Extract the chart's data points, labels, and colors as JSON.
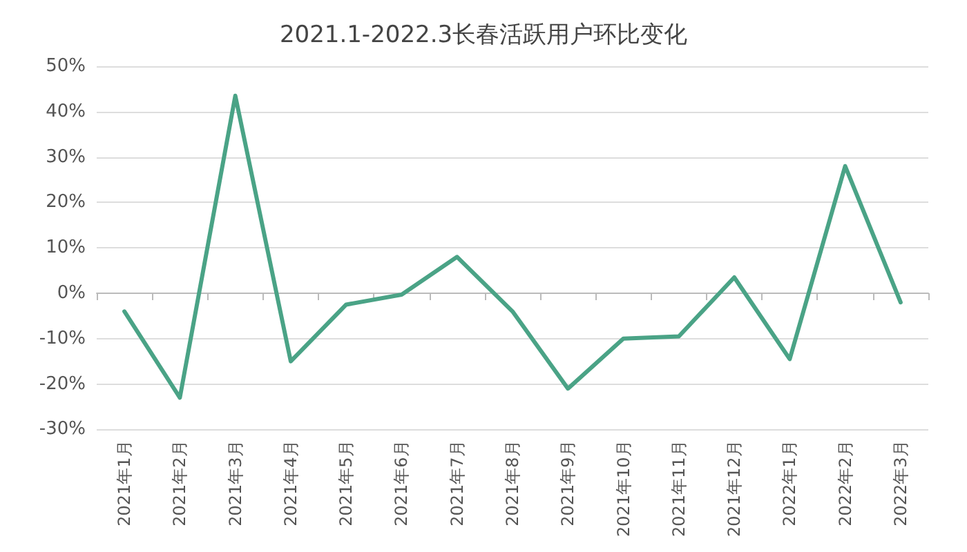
{
  "chart_data": {
    "type": "line",
    "title": "2021.1-2022.3长春活跃用户环比变化",
    "categories": [
      "2021年1月",
      "2021年2月",
      "2021年3月",
      "2021年4月",
      "2021年5月",
      "2021年6月",
      "2021年7月",
      "2021年8月",
      "2021年9月",
      "2021年10月",
      "2021年11月",
      "2021年12月",
      "2022年1月",
      "2022年2月",
      "2022年3月"
    ],
    "series": [
      {
        "color": "#4aa386",
        "values": [
          -4,
          -23,
          43.5,
          -15,
          -2.5,
          -0.3,
          8,
          -4,
          -21,
          -10,
          -9.5,
          3.5,
          -14.5,
          28,
          -2
        ]
      }
    ],
    "ylim": [
      -30,
      50
    ],
    "yticks": [
      {
        "value": -30,
        "label": "-30%"
      },
      {
        "value": -20,
        "label": "-20%"
      },
      {
        "value": -10,
        "label": "-10%"
      },
      {
        "value": 0,
        "label": "0%"
      },
      {
        "value": 10,
        "label": "10%"
      },
      {
        "value": 20,
        "label": "20%"
      },
      {
        "value": 30,
        "label": "30%"
      },
      {
        "value": 40,
        "label": "40%"
      },
      {
        "value": 50,
        "label": "50%"
      }
    ],
    "grid": "y",
    "marker": "none",
    "line_style": "solid"
  }
}
